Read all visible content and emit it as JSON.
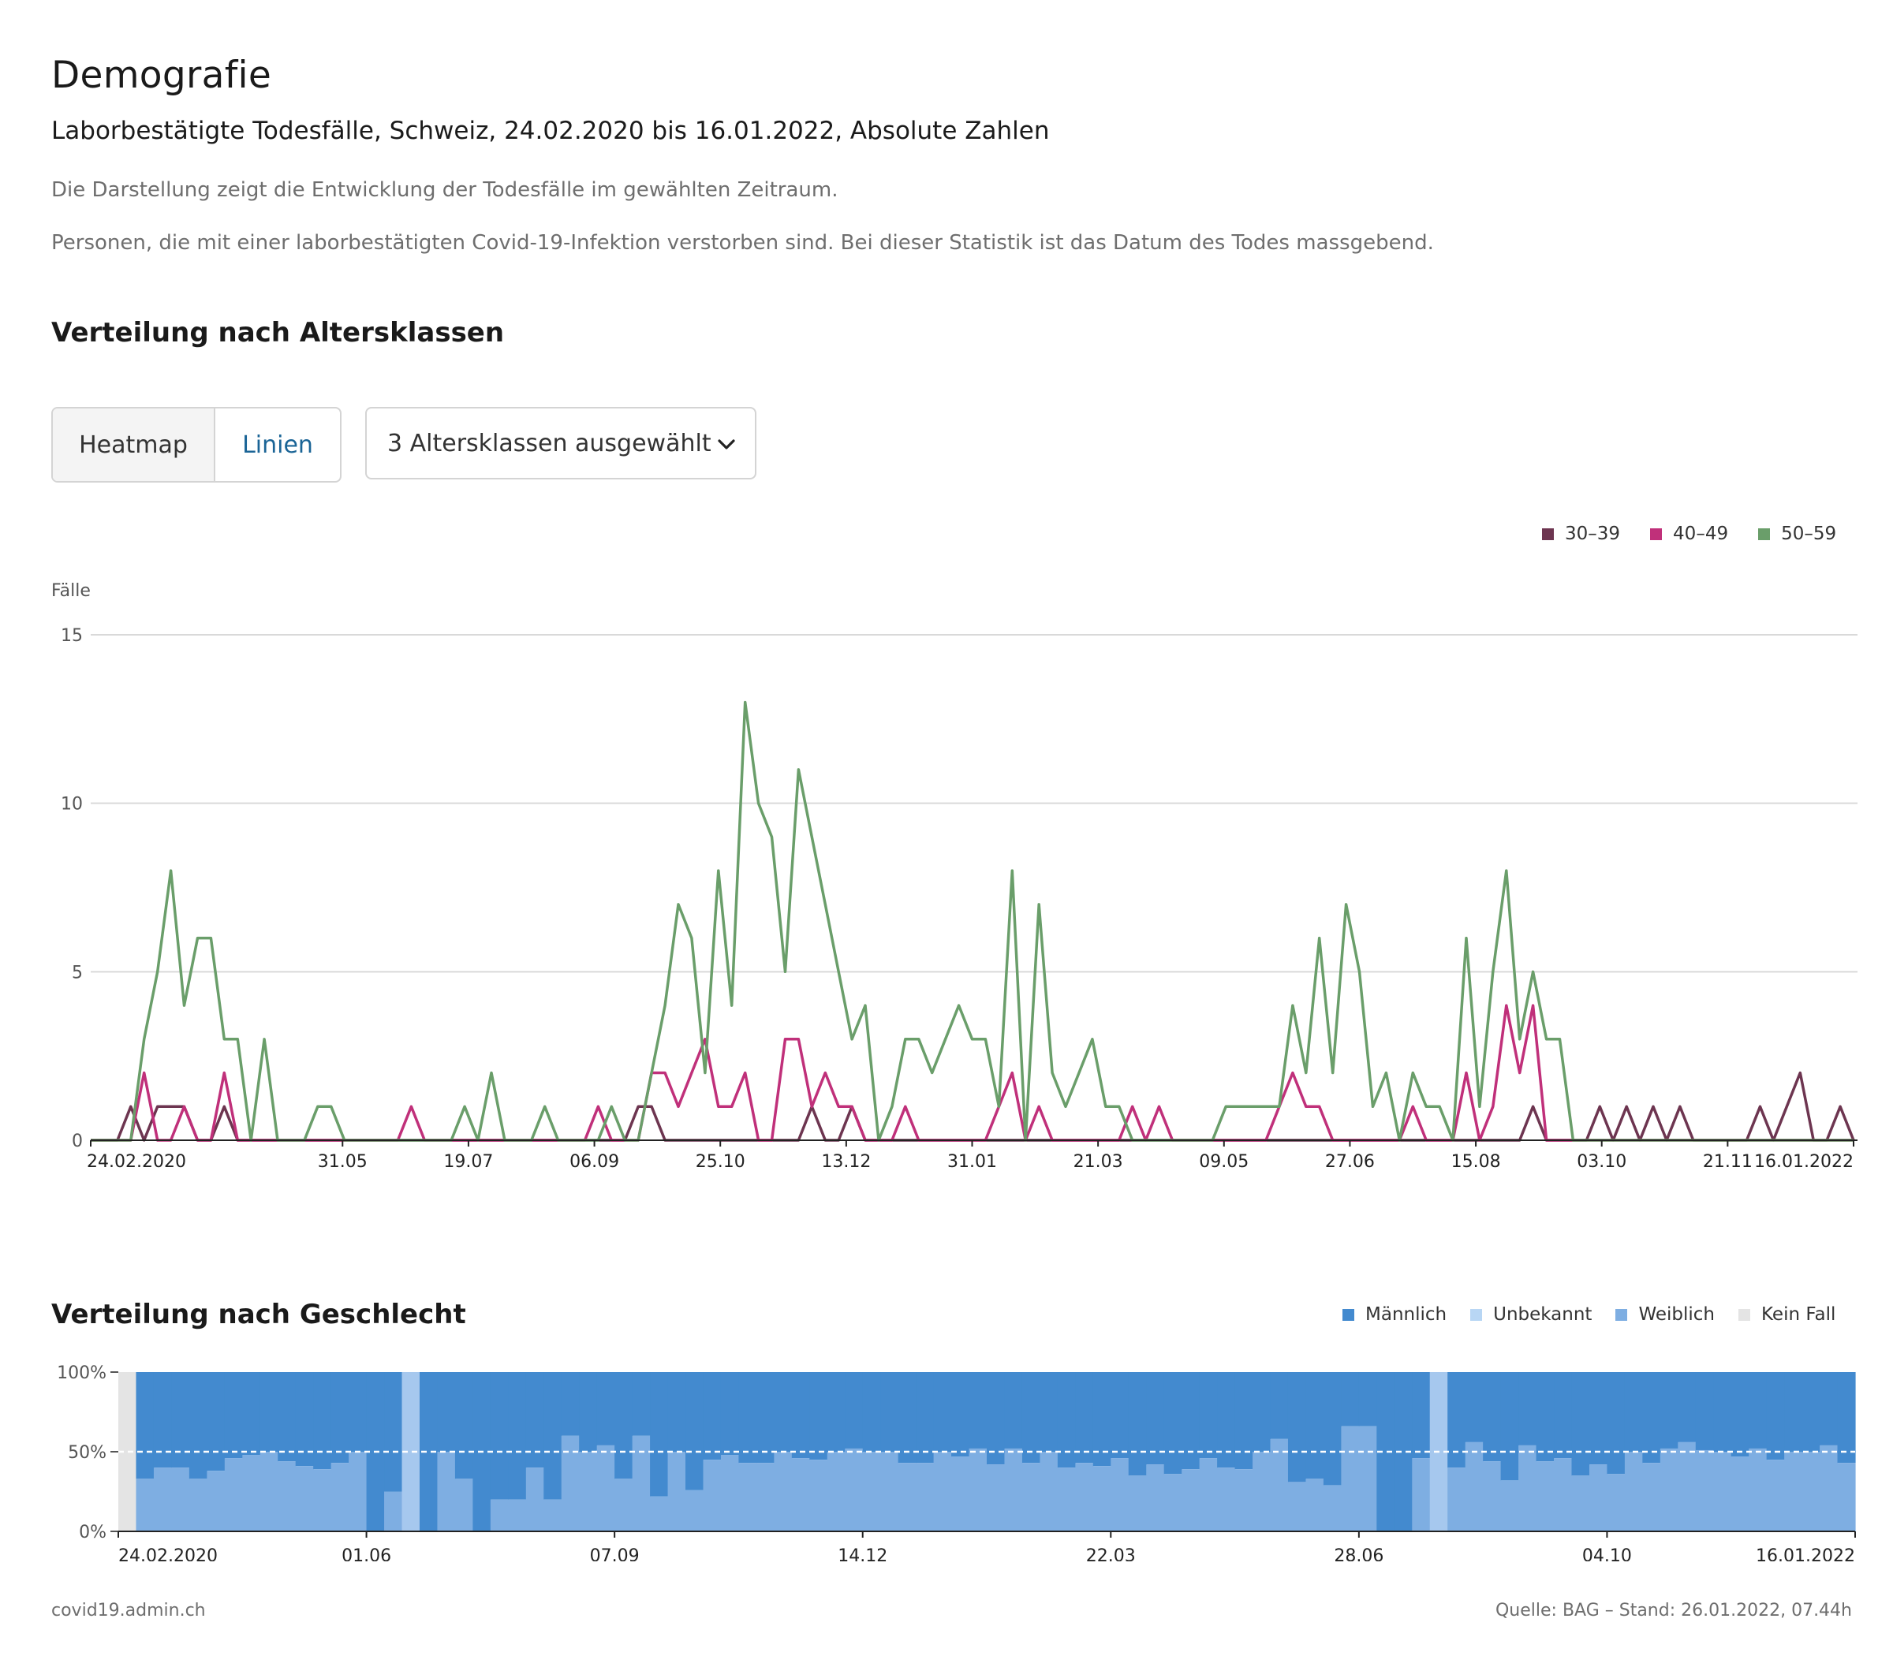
{
  "header": {
    "title": "Demografie",
    "subtitle": "Laborbestätigte Todesfälle, Schweiz, 24.02.2020 bis 16.01.2022, Absolute Zahlen",
    "desc1": "Die Darstellung zeigt die Entwicklung der Todesfälle im gewählten Zeitraum.",
    "desc2": "Personen, die mit einer laborbestätigten Covid-19-Infektion verstorben sind. Bei dieser Statistik ist das Datum des Todes massgebend."
  },
  "age_section": {
    "title": "Verteilung nach Altersklassen",
    "toggle": {
      "heatmap": "Heatmap",
      "lines": "Linien",
      "active": "lines"
    },
    "select_label": "3 Altersklassen ausgewählt"
  },
  "gender_section": {
    "title": "Verteilung nach Geschlecht"
  },
  "footer": {
    "left": "covid19.admin.ch",
    "right": "Quelle: BAG – Stand: 26.01.2022, 07.44h"
  },
  "colors": {
    "c30_39": "#6d3550",
    "c40_49": "#c0307a",
    "c50_59": "#6a9e6a",
    "maennlich": "#438acf",
    "unbekannt": "#b8d6f4",
    "weiblich": "#7eaee2",
    "kein_fall": "#e4e4e4"
  },
  "chart_data": [
    {
      "type": "line",
      "ylabel": "Fälle",
      "ylim": [
        0,
        15
      ],
      "yticks": [
        0,
        5,
        10,
        15
      ],
      "x_start": "24.02.2020",
      "x_end": "16.01.2022",
      "x_interval": "weekly",
      "xticks": [
        "24.02.2020",
        "31.05",
        "19.07",
        "06.09",
        "25.10",
        "13.12",
        "31.01",
        "21.03",
        "09.05",
        "27.06",
        "15.08",
        "03.10",
        "21.11",
        "16.01.2022"
      ],
      "legend_position": "top-right",
      "series": [
        {
          "name": "30–39",
          "color": "#6d3550",
          "values": [
            0,
            0,
            0,
            1,
            0,
            1,
            1,
            1,
            0,
            0,
            1,
            0,
            0,
            0,
            0,
            0,
            0,
            0,
            0,
            0,
            0,
            0,
            0,
            0,
            0,
            0,
            0,
            0,
            0,
            0,
            0,
            0,
            0,
            0,
            0,
            0,
            0,
            0,
            0,
            0,
            0,
            1,
            1,
            0,
            0,
            0,
            0,
            0,
            0,
            0,
            0,
            0,
            0,
            0,
            1,
            0,
            0,
            1,
            0,
            0,
            0,
            0,
            0,
            0,
            0,
            0,
            0,
            0,
            0,
            0,
            0,
            0,
            0,
            0,
            0,
            0,
            0,
            0,
            0,
            0,
            0,
            0,
            0,
            0,
            0,
            0,
            0,
            0,
            0,
            0,
            0,
            0,
            0,
            0,
            0,
            0,
            0,
            0,
            0,
            0,
            0,
            0,
            0,
            0,
            0,
            0,
            0,
            0,
            1,
            0,
            0,
            0,
            0,
            1,
            0,
            1,
            0,
            1,
            0,
            1,
            0,
            0,
            0,
            0,
            0,
            1,
            0,
            1,
            2,
            0,
            0,
            1,
            0
          ]
        },
        {
          "name": "40–49",
          "color": "#c0307a",
          "values": [
            0,
            0,
            0,
            0,
            2,
            0,
            0,
            1,
            0,
            0,
            2,
            0,
            0,
            0,
            0,
            0,
            0,
            0,
            0,
            0,
            0,
            0,
            0,
            0,
            1,
            0,
            0,
            0,
            0,
            0,
            0,
            0,
            0,
            0,
            0,
            0,
            0,
            0,
            1,
            0,
            0,
            0,
            2,
            2,
            1,
            2,
            3,
            1,
            1,
            2,
            0,
            0,
            3,
            3,
            1,
            2,
            1,
            1,
            0,
            0,
            0,
            1,
            0,
            0,
            0,
            0,
            0,
            0,
            1,
            2,
            0,
            1,
            0,
            0,
            0,
            0,
            0,
            0,
            1,
            0,
            1,
            0,
            0,
            0,
            0,
            0,
            0,
            0,
            0,
            1,
            2,
            1,
            1,
            0,
            0,
            0,
            0,
            0,
            0,
            1,
            0,
            0,
            0,
            2,
            0,
            1,
            4,
            2,
            4,
            0,
            0,
            0,
            0,
            0,
            0,
            0,
            0,
            0,
            0,
            0,
            0,
            0,
            0,
            0,
            0,
            0,
            0,
            0,
            0,
            0,
            0,
            0,
            0
          ]
        },
        {
          "name": "50–59",
          "color": "#6a9e6a",
          "values": [
            0,
            0,
            0,
            0,
            3,
            5,
            8,
            4,
            6,
            6,
            3,
            3,
            0,
            3,
            0,
            0,
            0,
            1,
            1,
            0,
            0,
            0,
            0,
            0,
            0,
            0,
            0,
            0,
            1,
            0,
            2,
            0,
            0,
            0,
            1,
            0,
            0,
            0,
            0,
            1,
            0,
            0,
            2,
            4,
            7,
            6,
            2,
            8,
            4,
            13,
            10,
            9,
            5,
            11,
            9,
            7,
            5,
            3,
            4,
            0,
            1,
            3,
            3,
            2,
            3,
            4,
            3,
            3,
            1,
            8,
            0,
            7,
            2,
            1,
            2,
            3,
            1,
            1,
            0,
            0,
            0,
            0,
            0,
            0,
            0,
            1,
            1,
            1,
            1,
            1,
            4,
            2,
            6,
            2,
            7,
            5,
            1,
            2,
            0,
            2,
            1,
            1,
            0,
            6,
            1,
            5,
            8,
            3,
            5,
            3,
            3,
            0,
            0,
            0,
            0,
            0,
            0,
            0,
            0,
            0,
            0,
            0,
            0,
            0,
            0,
            0,
            0,
            0,
            0,
            0,
            0,
            0,
            0
          ]
        }
      ]
    },
    {
      "type": "bar",
      "stacked": true,
      "normalized": true,
      "yticks": [
        "0%",
        "50%",
        "100%"
      ],
      "reference_line": "50%",
      "xticks": [
        "24.02.2020",
        "01.06",
        "07.09",
        "14.12",
        "22.03",
        "28.06",
        "04.10",
        "16.01.2022"
      ],
      "legend_position": "top-right",
      "legend": [
        "Männlich",
        "Unbekannt",
        "Weiblich",
        "Kein Fall"
      ],
      "series": [
        {
          "name": "Weiblich (Anteil %)",
          "values": [
            null,
            33,
            40,
            40,
            33,
            38,
            46,
            48,
            50,
            44,
            41,
            39,
            43,
            50,
            0,
            25,
            100,
            0,
            50,
            33,
            0,
            20,
            20,
            40,
            20,
            60,
            50,
            54,
            33,
            60,
            22,
            50,
            26,
            45,
            48,
            43,
            43,
            50,
            46,
            45,
            50,
            52,
            50,
            50,
            43,
            43,
            50,
            47,
            52,
            42,
            52,
            43,
            50,
            40,
            43,
            41,
            46,
            35,
            42,
            36,
            39,
            46,
            40,
            39,
            50,
            58,
            31,
            33,
            29,
            66,
            66,
            0,
            0,
            46,
            100,
            40,
            56,
            44,
            32,
            54,
            44,
            46,
            35,
            42,
            36,
            50,
            43,
            52,
            56,
            51,
            50,
            47,
            52,
            45,
            50,
            50,
            54,
            43
          ]
        }
      ]
    }
  ]
}
